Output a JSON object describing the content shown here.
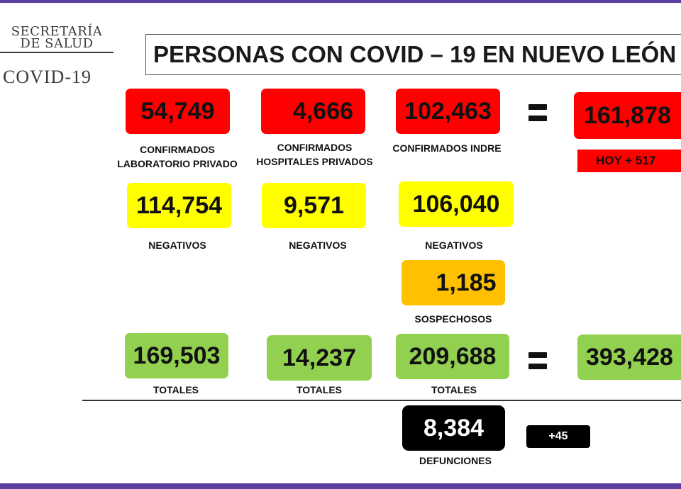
{
  "header": {
    "logo_line1": "SECRETARÍA",
    "logo_line2": "DE SALUD",
    "logo_line3": "COVID-19",
    "title": "PERSONAS CON COVID – 19 EN NUEVO LEÓN"
  },
  "confirmados": {
    "privado": {
      "value": "54,749",
      "label_line1": "CONFIRMADOS",
      "label_line2": "LABORATORIO PRIVADO"
    },
    "hospitales": {
      "value": "4,666",
      "label_line1": "CONFIRMADOS",
      "label_line2": "HOSPITALES PRIVADOS"
    },
    "indre": {
      "value": "102,463",
      "label": "CONFIRMADOS INDRE"
    },
    "total": {
      "value": "161,878",
      "hoy": "HOY + 517"
    }
  },
  "negativos": {
    "privado": {
      "value": "114,754",
      "label": "NEGATIVOS"
    },
    "hospitales": {
      "value": "9,571",
      "label": "NEGATIVOS"
    },
    "indre": {
      "value": "106,040",
      "label": "NEGATIVOS"
    }
  },
  "sospechosos": {
    "value": "1,185",
    "label": "SOSPECHOSOS"
  },
  "totales": {
    "privado": {
      "value": "169,503",
      "label": "TOTALES"
    },
    "hospitales": {
      "value": "14,237",
      "label": "TOTALES"
    },
    "indre": {
      "value": "209,688",
      "label": "TOTALES"
    },
    "grand": {
      "value": "393,428"
    }
  },
  "defunciones": {
    "value": "8,384",
    "label": "DEFUNCIONES",
    "increment": "+45"
  },
  "colors": {
    "confirmados": "#ff0000",
    "negativos": "#ffff00",
    "sospechosos": "#ffc000",
    "totales": "#92d050",
    "defunciones": "#000000",
    "frame": "#5b3fa0"
  }
}
